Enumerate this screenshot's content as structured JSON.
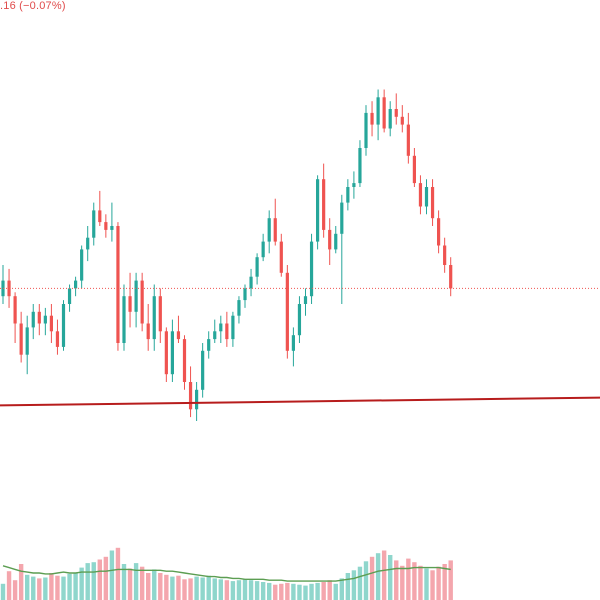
{
  "header": {
    "change_text": ".16 (−0.07%)"
  },
  "colors": {
    "up": "#26a69a",
    "down": "#ef5350",
    "up_volume": "#8fd6cc",
    "down_volume": "#f4a6ad",
    "trendline": "#b71c1c",
    "last_price_line": "#ef5350",
    "volume_ma": "#5c9e52"
  },
  "chart_data": {
    "type": "candlestick",
    "price_ylim": [
      0,
      100
    ],
    "volume_ylim": [
      0,
      100
    ],
    "last_price": 44,
    "trendline": {
      "from": [
        0,
        14
      ],
      "to": [
        100,
        16
      ]
    },
    "candles": [
      [
        42,
        50,
        40,
        46,
        18
      ],
      [
        46,
        49,
        39,
        42,
        32
      ],
      [
        42,
        43,
        30,
        35,
        22
      ],
      [
        35,
        38,
        25,
        27,
        40
      ],
      [
        27,
        37,
        22,
        34,
        28
      ],
      [
        34,
        40,
        31,
        38,
        26
      ],
      [
        38,
        40,
        32,
        35,
        24
      ],
      [
        35,
        39,
        32,
        37,
        25
      ],
      [
        37,
        40,
        30,
        33,
        30
      ],
      [
        33,
        36,
        27,
        29,
        27
      ],
      [
        29,
        41,
        28,
        40,
        26
      ],
      [
        40,
        45,
        38,
        44,
        29
      ],
      [
        44,
        47,
        42,
        46,
        30
      ],
      [
        46,
        55,
        44,
        54,
        36
      ],
      [
        54,
        60,
        51,
        57,
        41
      ],
      [
        57,
        66,
        55,
        64,
        42
      ],
      [
        64,
        69,
        60,
        61,
        45
      ],
      [
        61,
        63,
        57,
        59,
        48
      ],
      [
        59,
        66,
        56,
        60,
        55
      ],
      [
        60,
        61,
        28,
        30,
        58
      ],
      [
        30,
        45,
        28,
        42,
        40
      ],
      [
        42,
        48,
        34,
        38,
        35
      ],
      [
        38,
        48,
        34,
        46,
        41
      ],
      [
        46,
        48,
        33,
        35,
        37
      ],
      [
        35,
        40,
        28,
        31,
        30
      ],
      [
        31,
        45,
        28,
        42,
        34
      ],
      [
        42,
        44,
        30,
        33,
        30
      ],
      [
        33,
        34,
        20,
        22,
        28
      ],
      [
        22,
        36,
        20,
        33,
        26
      ],
      [
        33,
        37,
        30,
        31,
        27
      ],
      [
        31,
        32,
        18,
        20,
        23
      ],
      [
        20,
        24,
        11,
        13,
        24
      ],
      [
        13,
        20,
        10,
        18,
        26
      ],
      [
        18,
        30,
        16,
        28,
        25
      ],
      [
        28,
        33,
        26,
        31,
        27
      ],
      [
        31,
        36,
        30,
        33,
        24
      ],
      [
        33,
        37,
        30,
        35,
        23
      ],
      [
        35,
        38,
        29,
        31,
        22
      ],
      [
        31,
        38,
        29,
        37,
        21
      ],
      [
        37,
        42,
        35,
        41,
        22
      ],
      [
        41,
        45,
        39,
        44,
        23
      ],
      [
        44,
        49,
        42,
        47,
        22
      ],
      [
        47,
        53,
        45,
        52,
        21
      ],
      [
        52,
        58,
        51,
        56,
        20
      ],
      [
        56,
        64,
        53,
        62,
        19
      ],
      [
        62,
        67,
        55,
        56,
        17
      ],
      [
        56,
        58,
        47,
        48,
        18
      ],
      [
        48,
        50,
        26,
        28,
        19
      ],
      [
        28,
        34,
        24,
        32,
        18
      ],
      [
        32,
        42,
        30,
        40,
        17
      ],
      [
        40,
        44,
        37,
        42,
        16
      ],
      [
        42,
        58,
        40,
        56,
        18
      ],
      [
        56,
        73,
        54,
        72,
        19
      ],
      [
        72,
        76,
        57,
        59,
        20
      ],
      [
        59,
        62,
        50,
        54,
        22
      ],
      [
        54,
        60,
        53,
        58,
        18
      ],
      [
        58,
        68,
        40,
        66,
        24
      ],
      [
        66,
        72,
        64,
        70,
        30
      ],
      [
        70,
        74,
        67,
        71,
        33
      ],
      [
        71,
        82,
        70,
        80,
        37
      ],
      [
        80,
        91,
        78,
        89,
        43
      ],
      [
        89,
        92,
        83,
        86,
        48
      ],
      [
        86,
        95,
        82,
        93,
        52
      ],
      [
        93,
        95,
        84,
        85,
        55
      ],
      [
        85,
        92,
        83,
        90,
        50
      ],
      [
        90,
        94,
        86,
        88,
        44
      ],
      [
        88,
        91,
        84,
        86,
        38
      ],
      [
        86,
        89,
        76,
        78,
        46
      ],
      [
        78,
        80,
        70,
        71,
        42
      ],
      [
        71,
        73,
        63,
        65,
        38
      ],
      [
        65,
        72,
        63,
        70,
        35
      ],
      [
        70,
        72,
        60,
        62,
        33
      ],
      [
        62,
        64,
        53,
        55,
        37
      ],
      [
        55,
        57,
        48,
        50,
        40
      ],
      [
        50,
        52,
        42,
        44,
        44
      ]
    ],
    "volume_ma": [
      38,
      36,
      34,
      32,
      31,
      30,
      30,
      29,
      29,
      30,
      31,
      30,
      30,
      31,
      31,
      31,
      32,
      32,
      33,
      34,
      34,
      34,
      33,
      33,
      33,
      33,
      33,
      32,
      32,
      31,
      30,
      29,
      28,
      27,
      26,
      26,
      25,
      25,
      24,
      24,
      23,
      23,
      23,
      23,
      22,
      22,
      22,
      21,
      21,
      21,
      21,
      21,
      21,
      21,
      21,
      21,
      22,
      23,
      24,
      26,
      28,
      30,
      32,
      33,
      34,
      35,
      35,
      35,
      36,
      36,
      36,
      36,
      36,
      35,
      34
    ]
  }
}
